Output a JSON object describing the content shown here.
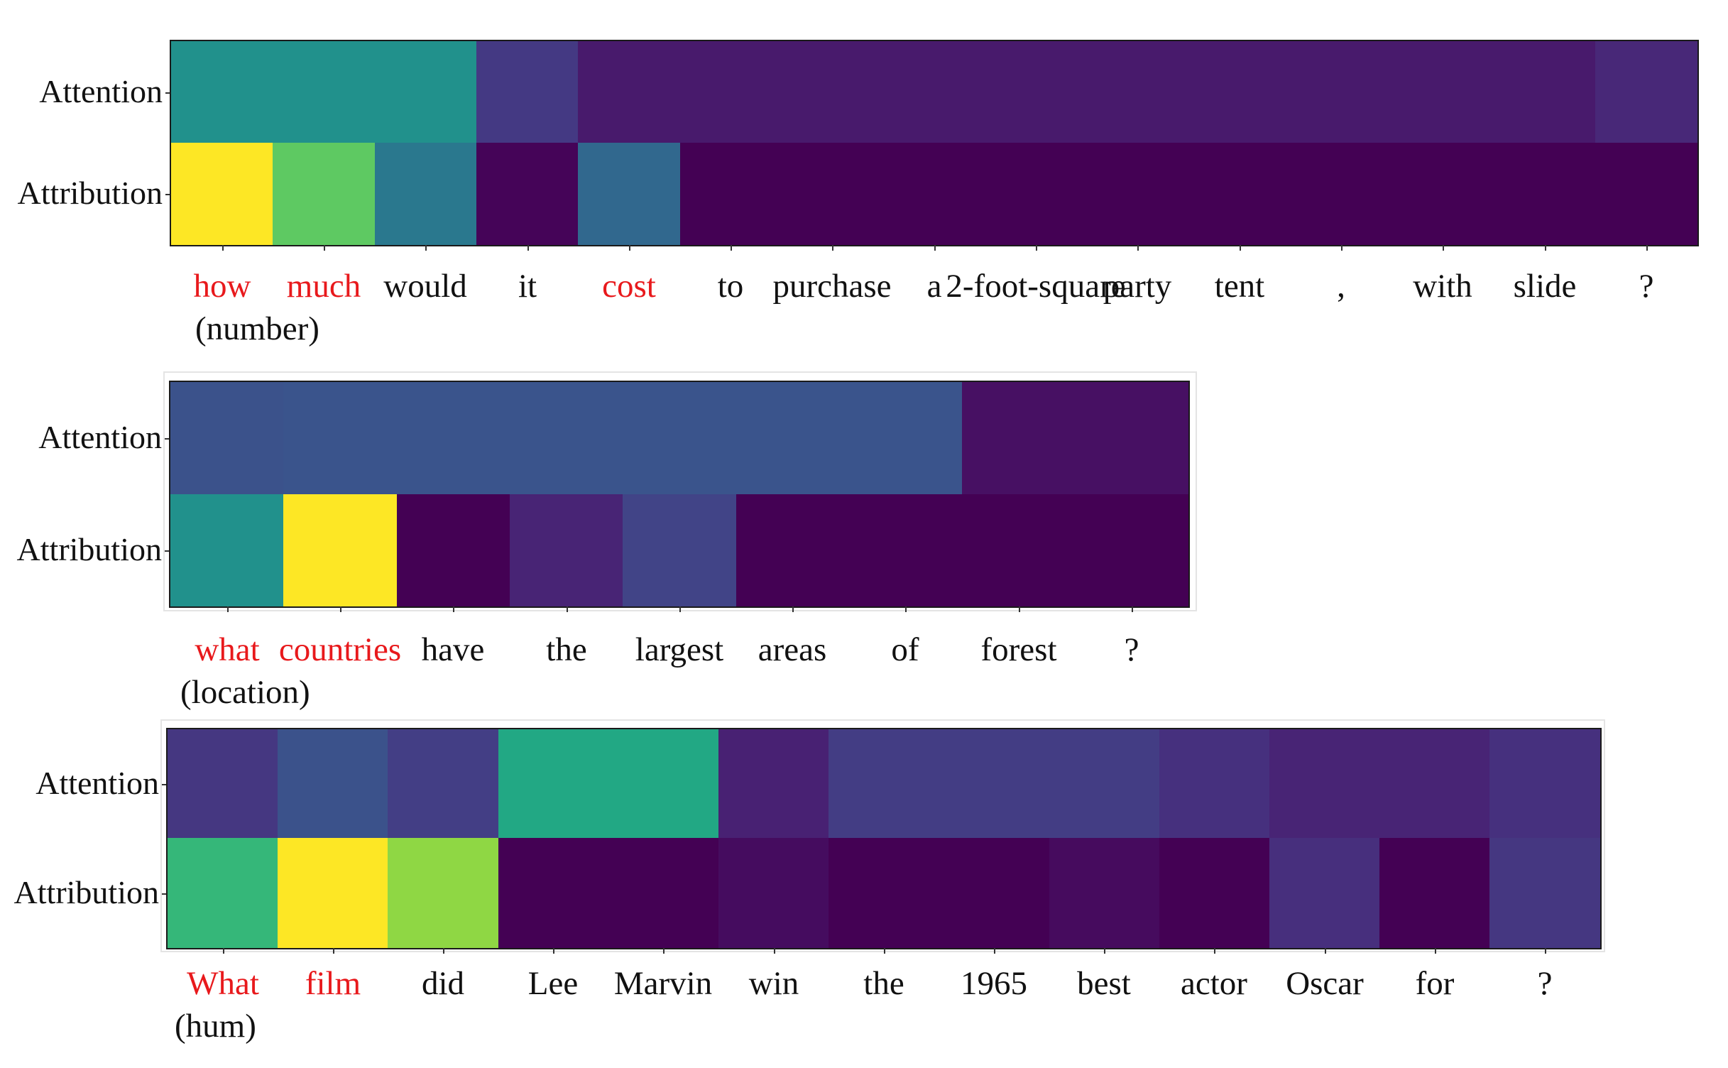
{
  "chart_data": [
    {
      "type": "heatmap",
      "rows": [
        "Attention",
        "Attribution"
      ],
      "words": [
        "how",
        "much",
        "would",
        "it",
        "cost",
        "to",
        "purchase",
        "a",
        "2-foot-square",
        "party",
        "tent",
        ",",
        "with",
        "slide",
        "?"
      ],
      "highlighted": [
        0,
        1,
        4
      ],
      "category_label": "(number)",
      "colors": {
        "Attention": [
          "#21918c",
          "#21918c",
          "#21918c",
          "#443983",
          "#481a6c",
          "#481a6c",
          "#481a6c",
          "#481a6c",
          "#481a6c",
          "#481a6c",
          "#481a6c",
          "#481a6c",
          "#481a6c",
          "#481a6c",
          "#482878"
        ],
        "Attribution": [
          "#fde725",
          "#5ec962",
          "#2a788e",
          "#450458",
          "#31688e",
          "#440154",
          "#440154",
          "#440154",
          "#440154",
          "#440154",
          "#440154",
          "#440154",
          "#440154",
          "#440154",
          "#440154"
        ]
      }
    },
    {
      "type": "heatmap",
      "rows": [
        "Attention",
        "Attribution"
      ],
      "words": [
        "what",
        "countries",
        "have",
        "the",
        "largest",
        "areas",
        "of",
        "forest",
        "?"
      ],
      "highlighted": [
        0,
        1
      ],
      "category_label": "(location)",
      "colors": {
        "Attention": [
          "#3b528b",
          "#3a548c",
          "#3a548c",
          "#3a548c",
          "#3a548c",
          "#3a548c",
          "#3a548c",
          "#471063",
          "#471063"
        ],
        "Attribution": [
          "#21918c",
          "#fde725",
          "#440154",
          "#482475",
          "#414487",
          "#440154",
          "#440154",
          "#440154",
          "#440154"
        ]
      }
    },
    {
      "type": "heatmap",
      "rows": [
        "Attention",
        "Attribution"
      ],
      "words": [
        "What",
        "film",
        "did",
        "Lee",
        "Marvin",
        "win",
        "the",
        "1965",
        "best",
        "actor",
        "Oscar",
        "for",
        "?"
      ],
      "highlighted": [
        0,
        1
      ],
      "category_label": "(hum)",
      "colors": {
        "Attention": [
          "#453781",
          "#3b528b",
          "#433e85",
          "#22a884",
          "#22a884",
          "#482173",
          "#433d84",
          "#433d84",
          "#433d84",
          "#46307e",
          "#482475",
          "#482475",
          "#46307e"
        ],
        "Attribution": [
          "#35b779",
          "#fde725",
          "#8fd744",
          "#440154",
          "#440154",
          "#450c5f",
          "#440154",
          "#440154",
          "#460b5e",
          "#440154",
          "#472f7d",
          "#440154",
          "#453781"
        ]
      }
    }
  ]
}
